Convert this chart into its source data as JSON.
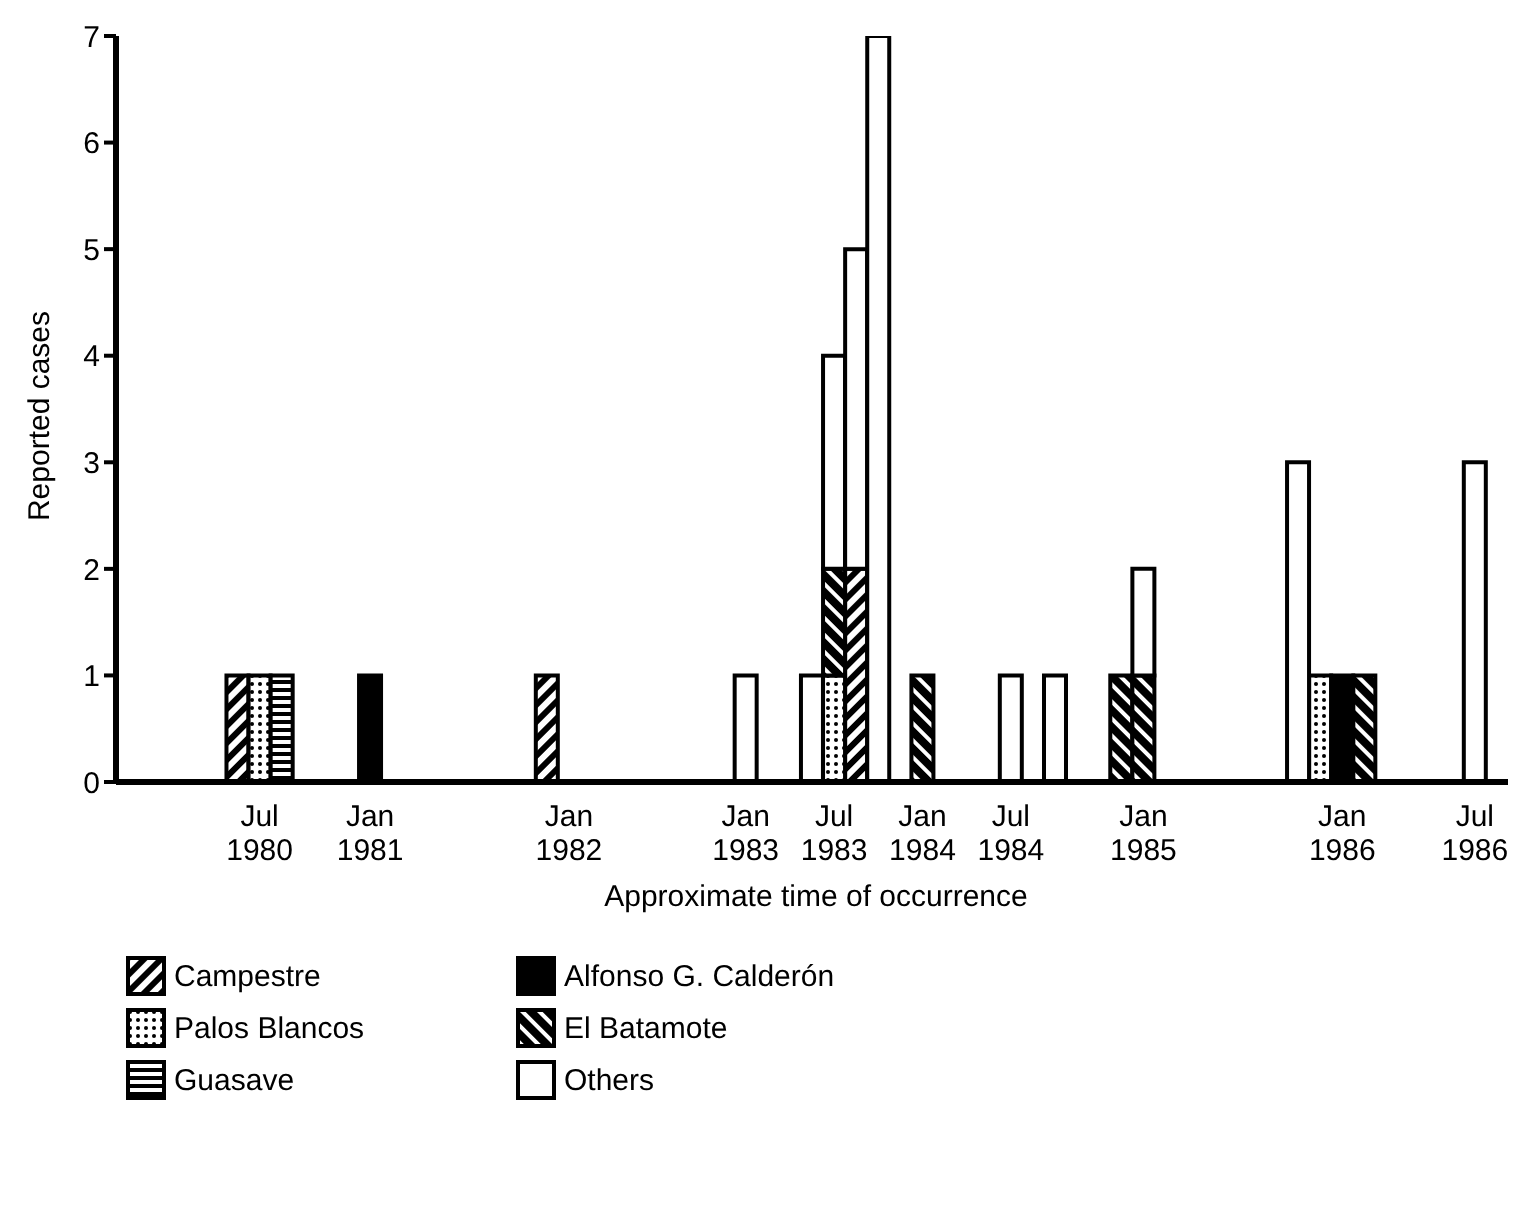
{
  "chart_data": {
    "type": "bar",
    "stacked": true,
    "xlabel": "Approximate time of occurrence",
    "ylabel": "Reported cases",
    "categories": [
      null,
      null,
      null,
      null,
      null,
      null,
      "Jul 1980",
      null,
      null,
      null,
      null,
      "Jan 1981",
      null,
      null,
      null,
      null,
      null,
      null,
      null,
      null,
      "Jan 1982",
      null,
      null,
      null,
      null,
      null,
      null,
      null,
      "Jan 1983",
      null,
      null,
      null,
      "Jul 1983",
      null,
      null,
      null,
      "Jan 1984",
      null,
      null,
      null,
      "Jul 1984",
      null,
      null,
      null,
      null,
      null,
      "Jan 1985",
      null,
      null,
      null,
      null,
      null,
      null,
      null,
      null,
      "Jan 1986",
      null,
      null,
      null,
      null,
      null,
      "Jul 1986",
      null
    ],
    "series": [
      {
        "name": "Campestre",
        "color": "#000000",
        "values": [
          null,
          null,
          null,
          null,
          null,
          1,
          null,
          null,
          null,
          null,
          null,
          null,
          null,
          null,
          null,
          null,
          null,
          null,
          null,
          1,
          null,
          null,
          null,
          null,
          null,
          null,
          null,
          null,
          null,
          null,
          null,
          null,
          null,
          2,
          null,
          null,
          null,
          null,
          null,
          null,
          null,
          null,
          null,
          null,
          null,
          null,
          null,
          null,
          null,
          null,
          null,
          null,
          null,
          null,
          null,
          null,
          null,
          null,
          null,
          null,
          null,
          null,
          null
        ]
      },
      {
        "name": "Palos Blancos",
        "color": "#000000",
        "values": [
          null,
          null,
          null,
          null,
          null,
          null,
          1,
          null,
          null,
          null,
          null,
          null,
          null,
          null,
          null,
          null,
          null,
          null,
          null,
          null,
          null,
          null,
          null,
          null,
          null,
          null,
          null,
          null,
          null,
          null,
          null,
          null,
          1,
          null,
          null,
          null,
          null,
          null,
          null,
          null,
          null,
          null,
          null,
          null,
          null,
          null,
          null,
          null,
          null,
          null,
          null,
          null,
          null,
          null,
          1,
          null,
          null,
          null,
          null,
          null,
          null,
          null,
          null
        ]
      },
      {
        "name": "Guasave",
        "color": "#000000",
        "values": [
          null,
          null,
          null,
          null,
          null,
          null,
          null,
          1,
          null,
          null,
          null,
          null,
          null,
          null,
          null,
          null,
          null,
          null,
          null,
          null,
          null,
          null,
          null,
          null,
          null,
          null,
          null,
          null,
          null,
          null,
          null,
          null,
          null,
          null,
          null,
          null,
          null,
          null,
          null,
          null,
          null,
          null,
          null,
          null,
          null,
          null,
          null,
          null,
          null,
          null,
          null,
          null,
          null,
          null,
          null,
          null,
          null,
          null,
          null,
          null,
          null,
          null,
          null
        ]
      },
      {
        "name": "Alfonso G. Calderón",
        "color": "#000000",
        "values": [
          null,
          null,
          null,
          null,
          null,
          null,
          null,
          null,
          null,
          null,
          null,
          1,
          null,
          null,
          null,
          null,
          null,
          null,
          null,
          null,
          null,
          null,
          null,
          null,
          null,
          null,
          null,
          null,
          null,
          null,
          null,
          null,
          null,
          null,
          null,
          null,
          null,
          null,
          null,
          null,
          null,
          null,
          null,
          null,
          null,
          null,
          null,
          null,
          null,
          null,
          null,
          null,
          null,
          null,
          null,
          1,
          null,
          null,
          null,
          null,
          null,
          null,
          null
        ]
      },
      {
        "name": "El Batamote",
        "color": "#000000",
        "values": [
          null,
          null,
          null,
          null,
          null,
          null,
          null,
          null,
          null,
          null,
          null,
          null,
          null,
          null,
          null,
          null,
          null,
          null,
          null,
          null,
          null,
          null,
          null,
          null,
          null,
          null,
          null,
          null,
          null,
          null,
          null,
          null,
          1,
          null,
          null,
          null,
          1,
          null,
          null,
          null,
          null,
          null,
          null,
          null,
          null,
          1,
          1,
          null,
          null,
          null,
          null,
          null,
          null,
          null,
          null,
          null,
          1,
          null,
          null,
          null,
          null,
          null,
          null
        ]
      },
      {
        "name": "Others",
        "color": "#ffffff",
        "values": [
          null,
          null,
          null,
          null,
          null,
          null,
          null,
          null,
          null,
          null,
          null,
          null,
          null,
          null,
          null,
          null,
          null,
          null,
          null,
          null,
          null,
          null,
          null,
          null,
          null,
          null,
          null,
          null,
          1,
          null,
          null,
          1,
          2,
          3,
          7,
          null,
          null,
          null,
          null,
          null,
          1,
          null,
          1,
          null,
          null,
          null,
          1,
          null,
          null,
          null,
          null,
          null,
          null,
          3,
          null,
          null,
          null,
          null,
          null,
          null,
          null,
          3,
          null
        ]
      }
    ],
    "ylim": [
      0,
      7
    ],
    "yticks": [
      0,
      1,
      2,
      3,
      4,
      5,
      6,
      7
    ],
    "grid": false,
    "legend": "bottom left"
  }
}
